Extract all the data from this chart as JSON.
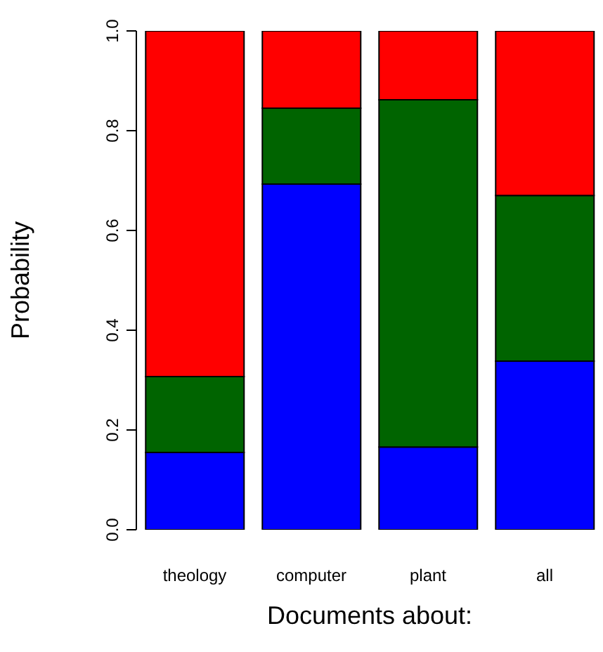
{
  "chart_data": {
    "type": "bar",
    "stacked": true,
    "xlabel": "Documents about:",
    "ylabel": "Probability",
    "categories": [
      "theology",
      "computer",
      "plant",
      "all"
    ],
    "series": [
      {
        "color": "#0000ff",
        "values": [
          0.155,
          0.693,
          0.166,
          0.338
        ]
      },
      {
        "color": "#006400",
        "values": [
          0.152,
          0.152,
          0.696,
          0.332
        ]
      },
      {
        "color": "#ff0000",
        "values": [
          0.693,
          0.155,
          0.138,
          0.33
        ]
      }
    ],
    "ylim": [
      0,
      1
    ],
    "yticks": [
      {
        "value": 0,
        "label": "0.0"
      },
      {
        "value": 0.2,
        "label": "0.2"
      },
      {
        "value": 0.4,
        "label": "0.4"
      },
      {
        "value": 0.6,
        "label": "0.6"
      },
      {
        "value": 0.8,
        "label": "0.8"
      },
      {
        "value": 1,
        "label": "1.0"
      }
    ]
  }
}
